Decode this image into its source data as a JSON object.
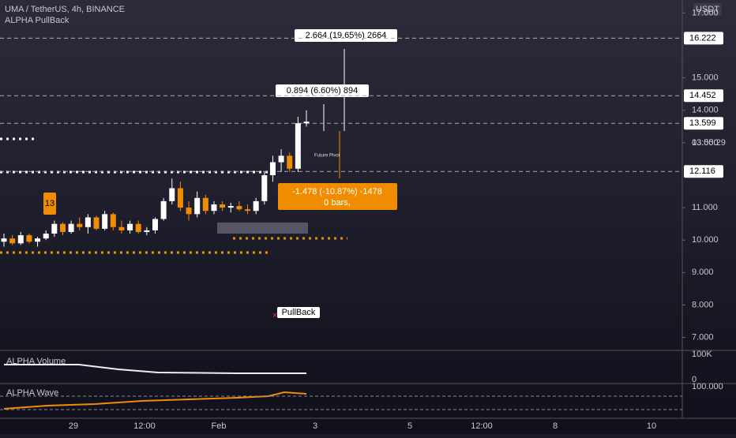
{
  "header": {
    "symbol": "UMA / TetherUS, 4h, BINANCE",
    "indicator": "ALPHA PullBack",
    "currency": "USDT"
  },
  "price_axis": {
    "ylim": [
      6.6,
      17.4
    ],
    "ticks": [
      {
        "value": 17,
        "label": "17.000"
      },
      {
        "value": 15,
        "label": "15.000"
      },
      {
        "value": 14,
        "label": "14.000"
      },
      {
        "value": 13,
        "label": "13.000"
      },
      {
        "value": 11,
        "label": "11.000"
      },
      {
        "value": 10,
        "label": "10.000"
      },
      {
        "value": 9,
        "label": "9.000"
      },
      {
        "value": 8,
        "label": "8.000"
      },
      {
        "value": 7,
        "label": "7.000"
      }
    ],
    "levels": [
      16.222,
      14.452,
      13.599,
      12.116
    ],
    "countdown": "03:55:29"
  },
  "time_axis": {
    "labels": [
      "29",
      "12:00",
      "Feb",
      "3",
      "5",
      "12:00",
      "8",
      "10"
    ]
  },
  "candles": {
    "open": [
      9.95,
      10.05,
      9.9,
      10.15,
      9.95,
      10.05,
      10.2,
      10.5,
      10.25,
      10.5,
      10.4,
      10.7,
      10.35,
      10.8,
      10.4,
      10.3,
      10.5,
      10.25,
      10.3,
      10.65,
      11.2,
      11.6,
      11.0,
      10.8,
      11.3,
      10.9,
      11.1,
      11.0,
      11.05,
      10.95,
      10.9,
      11.2,
      12.0,
      12.4,
      12.6,
      12.2,
      13.6
    ],
    "high": [
      10.2,
      10.15,
      10.25,
      10.2,
      10.1,
      10.3,
      10.6,
      10.55,
      10.6,
      10.7,
      10.8,
      10.75,
      10.9,
      10.85,
      10.6,
      10.6,
      10.6,
      10.4,
      10.7,
      11.3,
      11.9,
      11.8,
      11.2,
      11.5,
      11.4,
      11.2,
      11.2,
      11.15,
      11.2,
      11.1,
      11.3,
      12.1,
      12.6,
      12.8,
      12.7,
      13.8,
      14.0
    ],
    "low": [
      9.8,
      9.85,
      9.85,
      9.9,
      9.8,
      10.0,
      10.1,
      10.15,
      10.2,
      10.3,
      10.2,
      10.3,
      10.3,
      10.3,
      10.2,
      10.2,
      10.2,
      10.15,
      10.2,
      10.6,
      11.1,
      10.9,
      10.6,
      10.7,
      10.8,
      10.8,
      10.9,
      10.85,
      10.9,
      10.8,
      10.8,
      11.1,
      11.8,
      12.1,
      12.1,
      12.1,
      13.5
    ],
    "close": [
      10.05,
      9.9,
      10.15,
      9.95,
      10.05,
      10.2,
      10.5,
      10.25,
      10.5,
      10.4,
      10.7,
      10.35,
      10.8,
      10.4,
      10.3,
      10.5,
      10.25,
      10.3,
      10.65,
      11.2,
      11.6,
      11.0,
      10.8,
      11.3,
      10.9,
      11.1,
      11.0,
      11.05,
      10.95,
      10.9,
      11.2,
      12.0,
      12.4,
      12.6,
      12.2,
      13.6,
      13.65
    ]
  },
  "annotations": {
    "target_high": "2.664 (19.65%) 2664",
    "target_mid": "0.894 (6.60%) 894",
    "stop": "-1.478 (-10.87%) -1478",
    "bars": "0 bars,",
    "future_pivot": "Future Pivot",
    "pullback": "PullBack",
    "badge": "13"
  },
  "volume_panel": {
    "title": "ALPHA Volume",
    "tick_high": "100K",
    "tick_low": "0"
  },
  "wave_panel": {
    "title": "ALPHA Wave",
    "tick": "100.000"
  }
}
